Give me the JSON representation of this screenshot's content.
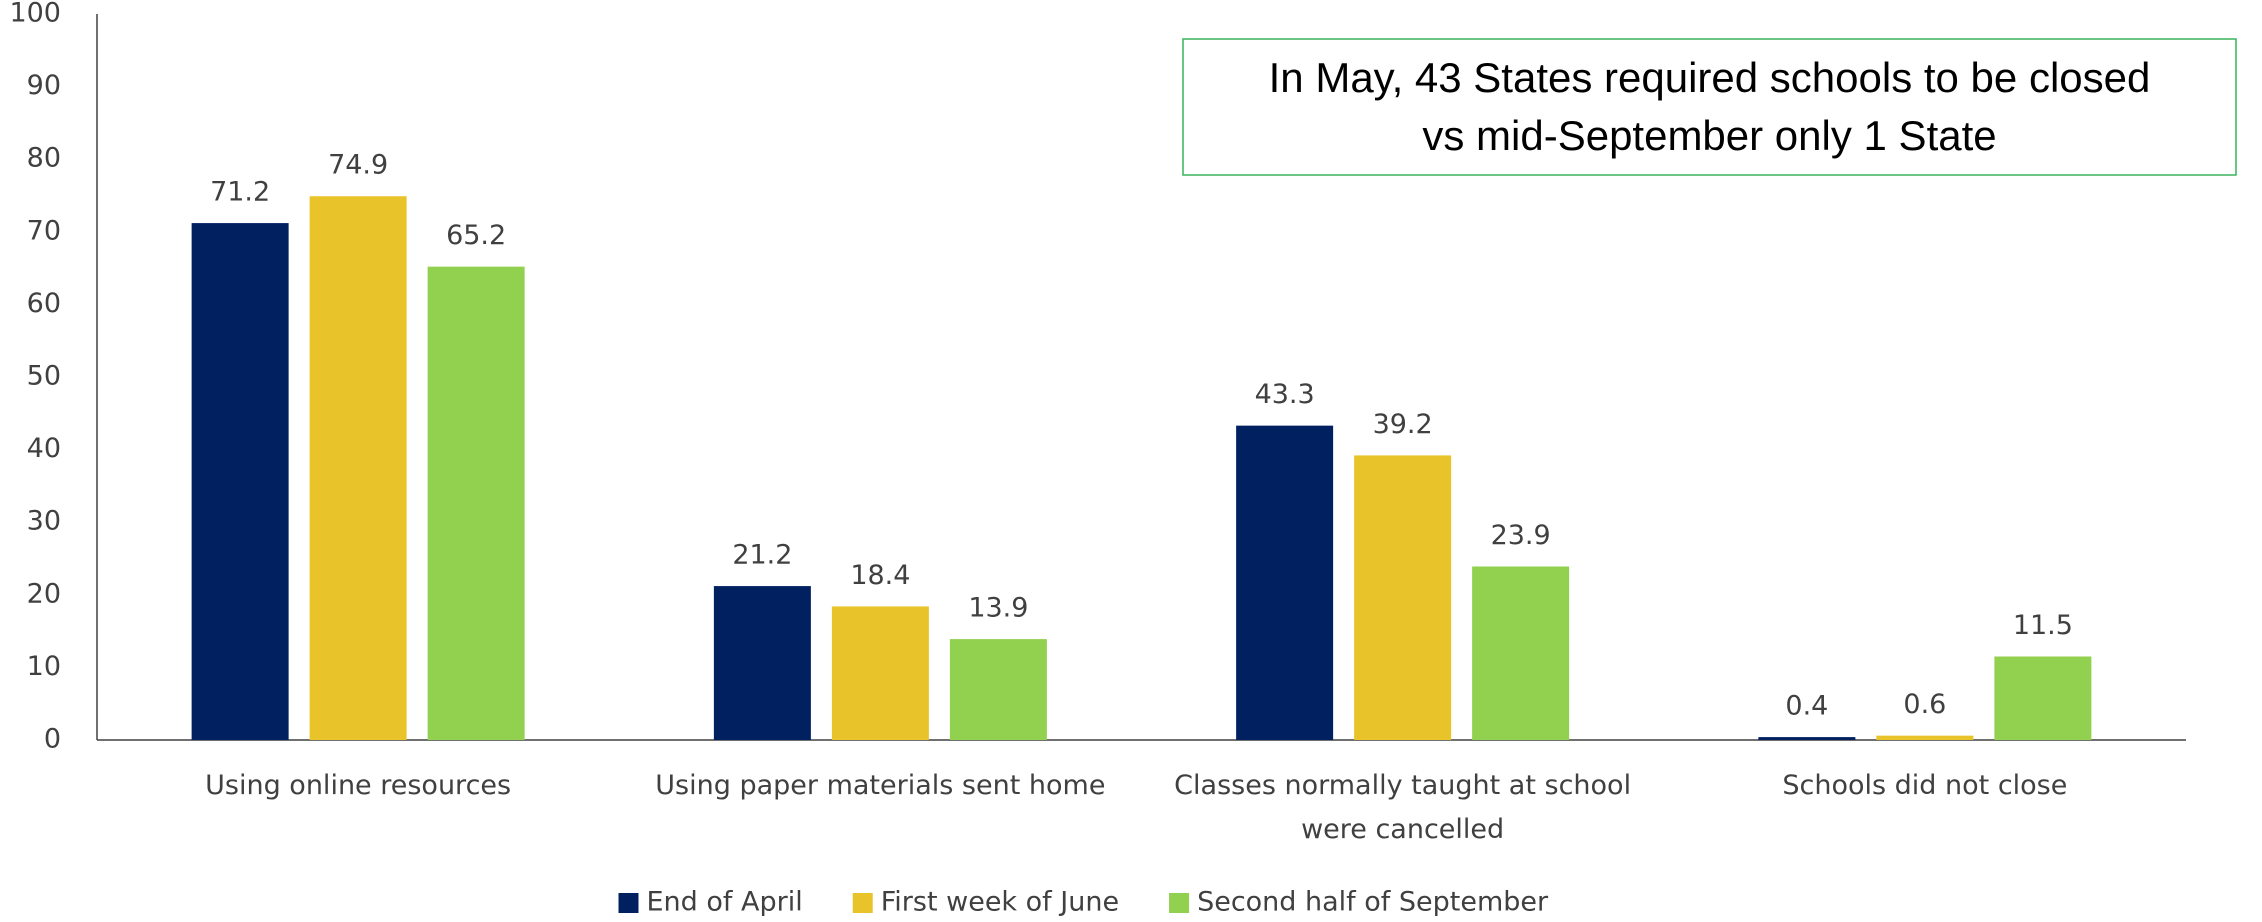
{
  "chart_data": {
    "type": "bar",
    "categories": [
      "Using online resources",
      "Using paper materials sent home",
      "Classes normally taught at school were cancelled",
      "Schools did not close"
    ],
    "series": [
      {
        "name": "End of April",
        "color": "#002060",
        "values": [
          71.2,
          21.2,
          43.3,
          0.4
        ]
      },
      {
        "name": "First week of June",
        "color": "#E9C32A",
        "values": [
          74.9,
          18.4,
          39.2,
          0.6
        ]
      },
      {
        "name": "Second half of September",
        "color": "#92D050",
        "values": [
          65.2,
          13.9,
          23.9,
          11.5
        ]
      }
    ],
    "ylim": [
      0,
      100
    ],
    "yticks": [
      0,
      10,
      20,
      30,
      40,
      50,
      60,
      70,
      80,
      90,
      100
    ],
    "grid": false,
    "legend": "bottom",
    "annotation": [
      "In May, 43 States required schools to be closed",
      "vs mid-September only 1 State"
    ]
  }
}
